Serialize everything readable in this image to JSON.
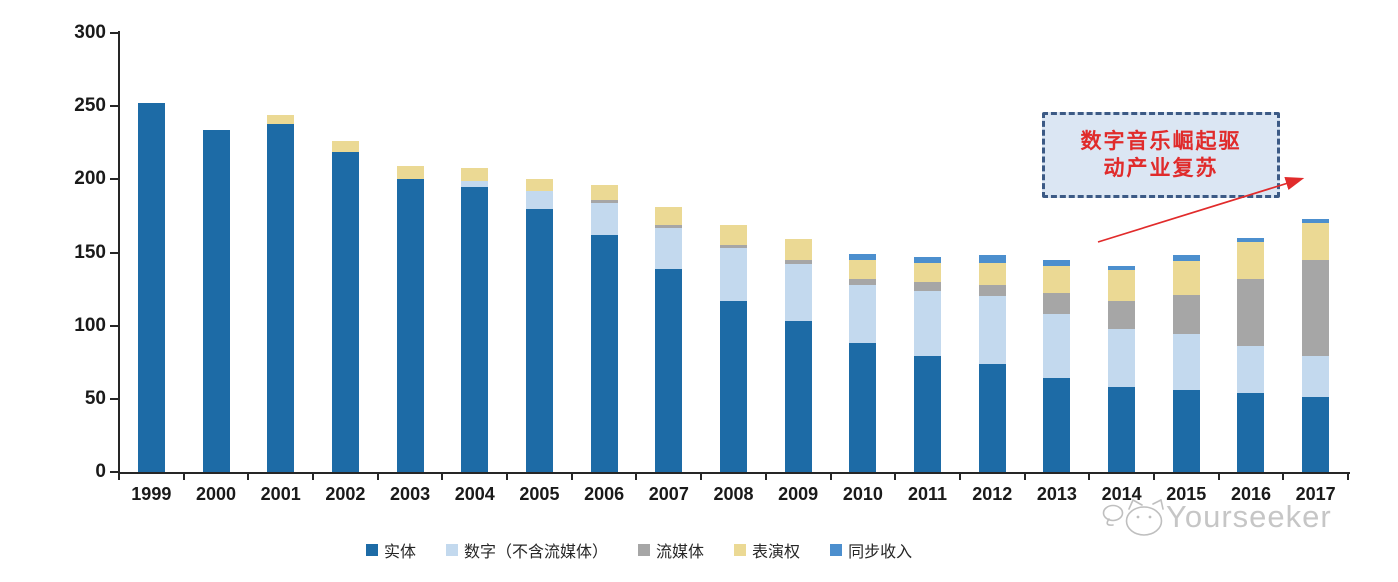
{
  "watermark": {
    "brand": "Yourseeker"
  },
  "annotation": {
    "line1": "数字音乐崛起驱",
    "line2": "动产业复苏"
  },
  "chart_data": {
    "type": "bar",
    "stacked": true,
    "title": "",
    "xlabel": "",
    "ylabel": "",
    "ylim": [
      0,
      300
    ],
    "ytick_step": 50,
    "y_ticks": [
      0,
      50,
      100,
      150,
      200,
      250,
      300
    ],
    "grid": false,
    "legend_position": "bottom",
    "categories": [
      "1999",
      "2000",
      "2001",
      "2002",
      "2003",
      "2004",
      "2005",
      "2006",
      "2007",
      "2008",
      "2009",
      "2010",
      "2011",
      "2012",
      "2013",
      "2014",
      "2015",
      "2016",
      "2017"
    ],
    "series": [
      {
        "name": "实体",
        "color": "#1d6ba6",
        "values": [
          252,
          234,
          238,
          219,
          200,
          195,
          180,
          162,
          139,
          117,
          103,
          88,
          79,
          74,
          64,
          58,
          56,
          54,
          51
        ]
      },
      {
        "name": "数字（不含流媒体）",
        "color": "#c3d9ee",
        "values": [
          0,
          0,
          0,
          0,
          0,
          4,
          12,
          22,
          28,
          36,
          39,
          40,
          45,
          46,
          44,
          40,
          38,
          32,
          28
        ]
      },
      {
        "name": "流媒体",
        "color": "#a6a6a6",
        "values": [
          0,
          0,
          0,
          0,
          0,
          0,
          0,
          2,
          2,
          2,
          3,
          4,
          6,
          8,
          14,
          19,
          27,
          46,
          66
        ]
      },
      {
        "name": "表演权",
        "color": "#ebd994",
        "values": [
          0,
          0,
          6,
          7,
          9,
          9,
          8,
          10,
          12,
          14,
          14,
          13,
          13,
          15,
          19,
          21,
          23,
          25,
          25
        ]
      },
      {
        "name": "同步收入",
        "color": "#4c8fce",
        "values": [
          0,
          0,
          0,
          0,
          0,
          0,
          0,
          0,
          0,
          0,
          0,
          4,
          4,
          5,
          4,
          3,
          4,
          3,
          3
        ]
      }
    ],
    "totals": [
      252,
      234,
      244,
      226,
      209,
      208,
      200,
      196,
      181,
      169,
      159,
      149,
      147,
      148,
      145,
      141,
      148,
      160,
      173
    ]
  }
}
